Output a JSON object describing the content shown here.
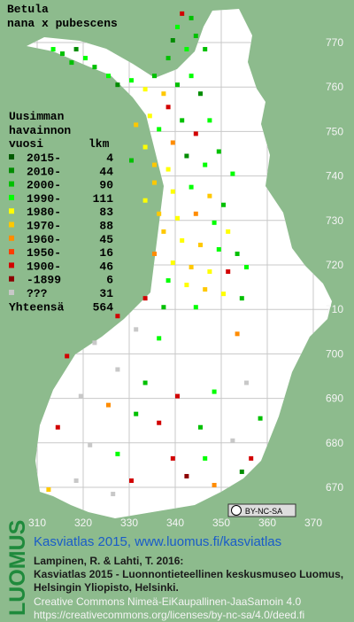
{
  "title": [
    "Betula",
    "nana x pubescens"
  ],
  "legend": {
    "heading": [
      "Uusimman",
      "havainnon",
      "vuosi"
    ],
    "count_heading": "lkm",
    "items": [
      {
        "label": "2015-",
        "count": 4,
        "color": "#005a00"
      },
      {
        "label": "2010-",
        "count": 44,
        "color": "#008c00"
      },
      {
        "label": "2000-",
        "count": 90,
        "color": "#00c000"
      },
      {
        "label": "1990-",
        "count": 111,
        "color": "#00ff00"
      },
      {
        "label": "1980-",
        "count": 83,
        "color": "#ffff00"
      },
      {
        "label": "1970-",
        "count": 88,
        "color": "#ffc800"
      },
      {
        "label": "1960-",
        "count": 45,
        "color": "#ff8c00"
      },
      {
        "label": "1950-",
        "count": 16,
        "color": "#ff3c00"
      },
      {
        "label": "1900-",
        "count": 46,
        "color": "#d20000"
      },
      {
        "label": "-1899",
        "count": 6,
        "color": "#8c0000"
      },
      {
        "label": "???",
        "count": 31,
        "color": "#c8c8c8"
      }
    ],
    "total_label": "Yhteensä",
    "total": 564
  },
  "grid": {
    "xlim": [
      302,
      375
    ],
    "ylim": [
      666,
      778
    ],
    "xticks": [
      310,
      320,
      330,
      340,
      350,
      360,
      370
    ],
    "yticks": [
      670,
      680,
      690,
      700,
      710,
      720,
      730,
      740,
      750,
      760,
      770
    ]
  },
  "cells": [
    [
      341,
      776,
      8
    ],
    [
      343,
      775,
      2
    ],
    [
      340,
      773,
      3
    ],
    [
      344,
      771,
      2
    ],
    [
      339,
      770,
      1
    ],
    [
      342,
      768,
      3
    ],
    [
      346,
      768,
      2
    ],
    [
      338,
      766,
      2
    ],
    [
      313,
      768,
      3
    ],
    [
      315,
      767,
      2
    ],
    [
      318,
      768,
      1
    ],
    [
      320,
      766,
      3
    ],
    [
      317,
      765,
      2
    ],
    [
      322,
      764,
      2
    ],
    [
      325,
      762,
      3
    ],
    [
      327,
      760,
      1
    ],
    [
      330,
      761,
      3
    ],
    [
      333,
      759,
      4
    ],
    [
      335,
      762,
      2
    ],
    [
      337,
      758,
      5
    ],
    [
      340,
      760,
      2
    ],
    [
      343,
      762,
      3
    ],
    [
      345,
      758,
      1
    ],
    [
      338,
      755,
      8
    ],
    [
      334,
      753,
      4
    ],
    [
      331,
      751,
      5
    ],
    [
      336,
      750,
      3
    ],
    [
      341,
      752,
      2
    ],
    [
      344,
      749,
      8
    ],
    [
      347,
      752,
      3
    ],
    [
      339,
      747,
      6
    ],
    [
      333,
      746,
      4
    ],
    [
      330,
      743,
      2
    ],
    [
      335,
      742,
      5
    ],
    [
      338,
      741,
      4
    ],
    [
      342,
      744,
      1
    ],
    [
      346,
      742,
      3
    ],
    [
      349,
      745,
      2
    ],
    [
      352,
      740,
      3
    ],
    [
      335,
      738,
      5
    ],
    [
      339,
      736,
      4
    ],
    [
      343,
      737,
      3
    ],
    [
      347,
      735,
      5
    ],
    [
      350,
      733,
      2
    ],
    [
      333,
      734,
      4
    ],
    [
      336,
      731,
      5
    ],
    [
      340,
      730,
      4
    ],
    [
      344,
      731,
      6
    ],
    [
      348,
      729,
      3
    ],
    [
      351,
      727,
      4
    ],
    [
      337,
      727,
      5
    ],
    [
      341,
      725,
      4
    ],
    [
      345,
      724,
      5
    ],
    [
      349,
      723,
      3
    ],
    [
      353,
      722,
      2
    ],
    [
      335,
      722,
      6
    ],
    [
      339,
      720,
      4
    ],
    [
      343,
      719,
      5
    ],
    [
      347,
      718,
      4
    ],
    [
      351,
      718,
      8
    ],
    [
      355,
      719,
      3
    ],
    [
      338,
      716,
      3
    ],
    [
      342,
      715,
      4
    ],
    [
      346,
      714,
      5
    ],
    [
      350,
      713,
      4
    ],
    [
      354,
      712,
      2
    ],
    [
      333,
      712,
      8
    ],
    [
      337,
      710,
      2
    ],
    [
      344,
      710,
      3
    ],
    [
      327,
      708,
      8
    ],
    [
      331,
      705,
      10
    ],
    [
      336,
      703,
      3
    ],
    [
      353,
      704,
      6
    ],
    [
      322,
      702,
      10
    ],
    [
      316,
      699,
      8
    ],
    [
      327,
      696,
      10
    ],
    [
      333,
      693,
      2
    ],
    [
      340,
      690,
      8
    ],
    [
      348,
      691,
      3
    ],
    [
      355,
      693,
      10
    ],
    [
      319,
      690,
      10
    ],
    [
      325,
      688,
      6
    ],
    [
      331,
      686,
      2
    ],
    [
      336,
      684,
      8
    ],
    [
      345,
      683,
      2
    ],
    [
      352,
      680,
      10
    ],
    [
      358,
      685,
      2
    ],
    [
      314,
      683,
      8
    ],
    [
      321,
      679,
      10
    ],
    [
      327,
      677,
      3
    ],
    [
      339,
      676,
      8
    ],
    [
      346,
      676,
      3
    ],
    [
      354,
      673,
      1
    ],
    [
      330,
      671,
      8
    ],
    [
      318,
      671,
      10
    ],
    [
      312,
      669,
      5
    ],
    [
      326,
      668,
      10
    ],
    [
      348,
      670,
      6
    ],
    [
      356,
      676,
      8
    ],
    [
      342,
      672,
      9
    ]
  ],
  "license_badge": "BY-NC-SA",
  "footer": {
    "logo": "LUOMUS",
    "link": "Kasviatlas 2015, www.luomus.fi/kasviatlas",
    "citation": [
      "Lampinen, R. & Lahti, T. 2016:",
      "Kasviatlas 2015 - Luonnontieteellinen keskusmuseo Luomus,",
      "Helsingin Yliopisto, Helsinki."
    ],
    "license": [
      "Creative Commons Nimeä-EiKaupallinen-JaaSamoin 4.0",
      "https://creativecommons.org/licenses/by-nc-sa/4.0/deed.fi"
    ]
  }
}
